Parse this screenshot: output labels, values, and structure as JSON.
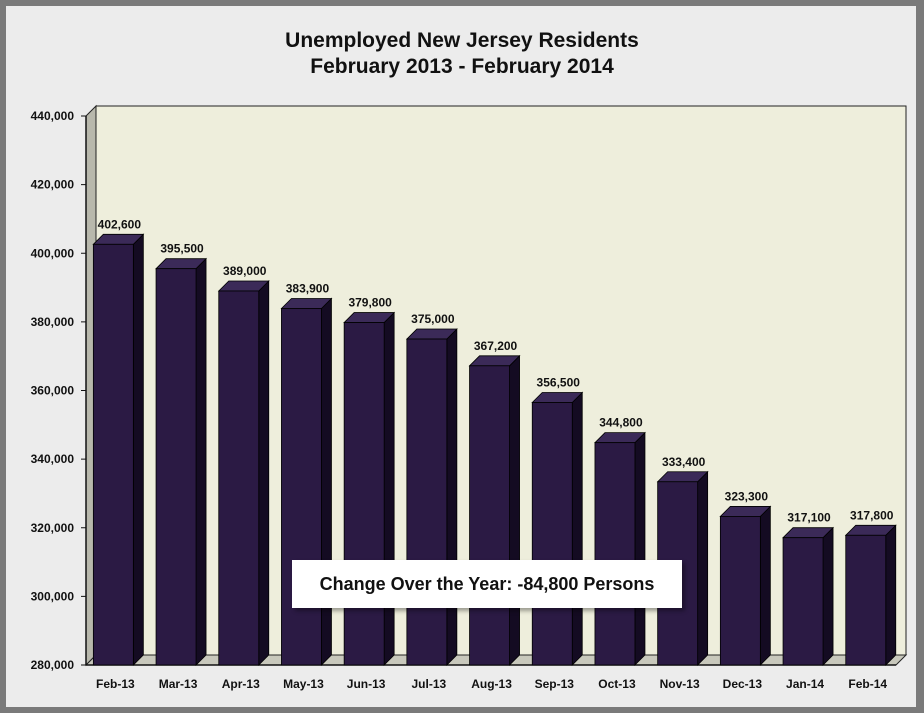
{
  "chart_data": {
    "type": "bar",
    "title": "Unemployed New Jersey Residents",
    "subtitle": "February 2013 - February 2014",
    "categories": [
      "Feb-13",
      "Mar-13",
      "Apr-13",
      "May-13",
      "Jun-13",
      "Jul-13",
      "Aug-13",
      "Sep-13",
      "Oct-13",
      "Nov-13",
      "Dec-13",
      "Jan-14",
      "Feb-14"
    ],
    "values": [
      402600,
      395500,
      389000,
      383900,
      379800,
      375000,
      367200,
      356500,
      344800,
      333400,
      323300,
      317100,
      317800
    ],
    "value_labels": [
      "402,600",
      "395,500",
      "389,000",
      "383,900",
      "379,800",
      "375,000",
      "367,200",
      "356,500",
      "344,800",
      "333,400",
      "323,300",
      "317,100",
      "317,800"
    ],
    "ylim": [
      280000,
      440000
    ],
    "yticks": [
      "280,000",
      "300,000",
      "320,000",
      "340,000",
      "360,000",
      "380,000",
      "400,000",
      "420,000",
      "440,000"
    ],
    "grid": false,
    "annotation": "Change Over  the Year: -84,800 Persons",
    "colors": {
      "bar": "#2b1a44",
      "bar_top": "#3b2a58",
      "bar_side": "#140b22",
      "plot_bg": "#eeeedc"
    }
  }
}
